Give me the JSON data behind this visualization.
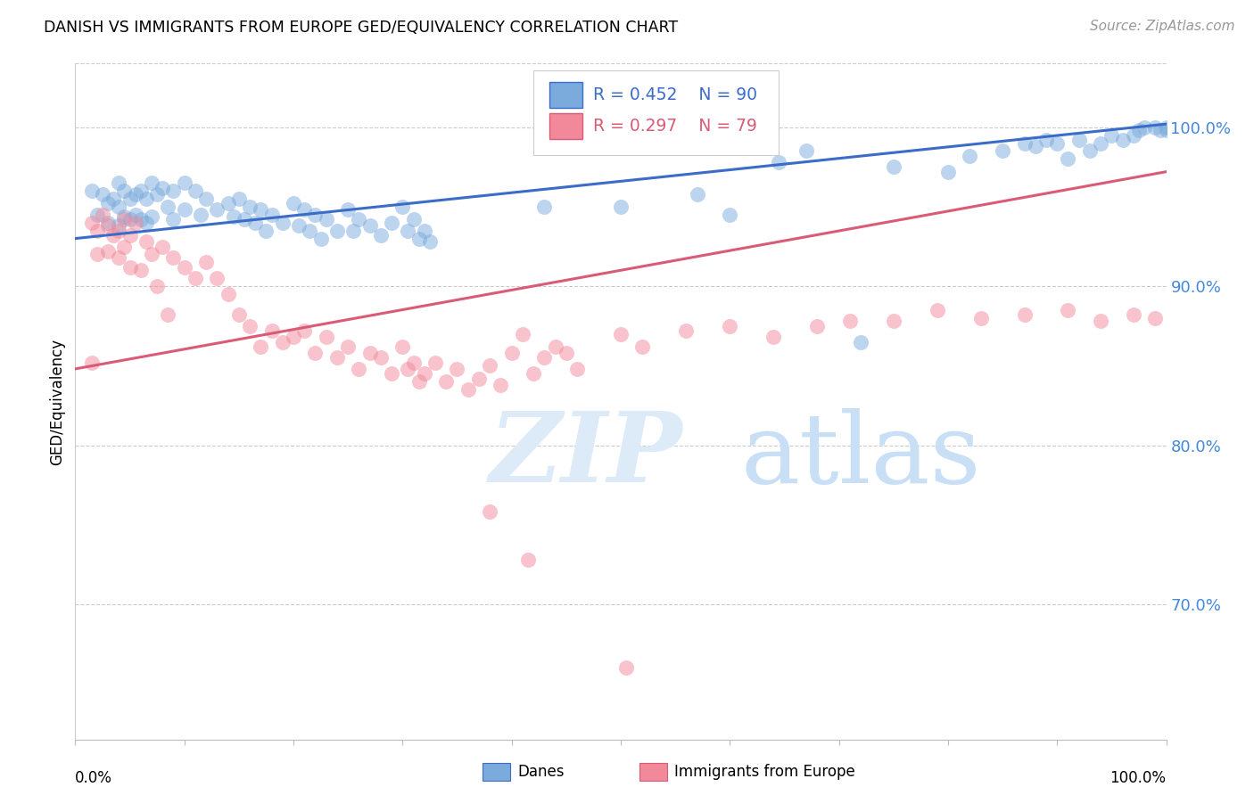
{
  "title": "DANISH VS IMMIGRANTS FROM EUROPE GED/EQUIVALENCY CORRELATION CHART",
  "source": "Source: ZipAtlas.com",
  "ylabel": "GED/Equivalency",
  "ytick_labels": [
    "100.0%",
    "90.0%",
    "80.0%",
    "70.0%"
  ],
  "ytick_positions": [
    1.0,
    0.9,
    0.8,
    0.7
  ],
  "xlim": [
    0.0,
    1.0
  ],
  "ylim": [
    0.615,
    1.04
  ],
  "legend_blue_r": "R = 0.452",
  "legend_blue_n": "N = 90",
  "legend_pink_r": "R = 0.297",
  "legend_pink_n": "N = 79",
  "blue_color": "#7AABDC",
  "pink_color": "#F2899A",
  "blue_line_color": "#3B6CC7",
  "pink_line_color": "#D95B75",
  "watermark_zip": "ZIP",
  "watermark_atlas": "atlas",
  "watermark_color": "#DDEAF8",
  "blue_trend_y_start": 0.93,
  "blue_trend_y_end": 1.002,
  "pink_trend_y_start": 0.848,
  "pink_trend_y_end": 0.972,
  "blue_scatter_x": [
    0.015,
    0.02,
    0.025,
    0.03,
    0.03,
    0.035,
    0.04,
    0.04,
    0.04,
    0.045,
    0.045,
    0.05,
    0.05,
    0.055,
    0.055,
    0.06,
    0.06,
    0.065,
    0.065,
    0.07,
    0.07,
    0.075,
    0.08,
    0.085,
    0.09,
    0.09,
    0.1,
    0.1,
    0.11,
    0.115,
    0.12,
    0.13,
    0.14,
    0.145,
    0.15,
    0.155,
    0.16,
    0.165,
    0.17,
    0.175,
    0.18,
    0.19,
    0.2,
    0.205,
    0.21,
    0.215,
    0.22,
    0.225,
    0.23,
    0.24,
    0.25,
    0.255,
    0.26,
    0.27,
    0.28,
    0.29,
    0.3,
    0.305,
    0.31,
    0.315,
    0.32,
    0.325,
    0.43,
    0.5,
    0.57,
    0.6,
    0.72,
    0.75,
    0.8,
    0.82,
    0.85,
    0.87,
    0.88,
    0.89,
    0.9,
    0.91,
    0.92,
    0.93,
    0.94,
    0.95,
    0.96,
    0.97,
    0.975,
    0.98,
    0.99,
    0.995,
    1.0,
    1.0,
    0.645,
    0.67
  ],
  "blue_scatter_y": [
    0.96,
    0.945,
    0.958,
    0.952,
    0.94,
    0.955,
    0.965,
    0.95,
    0.938,
    0.96,
    0.944,
    0.955,
    0.942,
    0.958,
    0.945,
    0.96,
    0.942,
    0.955,
    0.94,
    0.965,
    0.944,
    0.958,
    0.962,
    0.95,
    0.96,
    0.942,
    0.965,
    0.948,
    0.96,
    0.945,
    0.955,
    0.948,
    0.952,
    0.944,
    0.955,
    0.942,
    0.95,
    0.94,
    0.948,
    0.935,
    0.945,
    0.94,
    0.952,
    0.938,
    0.948,
    0.935,
    0.945,
    0.93,
    0.942,
    0.935,
    0.948,
    0.935,
    0.942,
    0.938,
    0.932,
    0.94,
    0.95,
    0.935,
    0.942,
    0.93,
    0.935,
    0.928,
    0.95,
    0.95,
    0.958,
    0.945,
    0.865,
    0.975,
    0.972,
    0.982,
    0.985,
    0.99,
    0.988,
    0.992,
    0.99,
    0.98,
    0.992,
    0.985,
    0.99,
    0.995,
    0.992,
    0.995,
    0.998,
    1.0,
    1.0,
    0.998,
    1.0,
    0.998,
    0.978,
    0.985
  ],
  "pink_scatter_x": [
    0.015,
    0.02,
    0.02,
    0.025,
    0.03,
    0.03,
    0.035,
    0.04,
    0.04,
    0.045,
    0.045,
    0.05,
    0.05,
    0.055,
    0.06,
    0.065,
    0.07,
    0.075,
    0.08,
    0.085,
    0.09,
    0.1,
    0.11,
    0.12,
    0.13,
    0.14,
    0.15,
    0.16,
    0.17,
    0.18,
    0.19,
    0.2,
    0.21,
    0.22,
    0.23,
    0.24,
    0.25,
    0.26,
    0.27,
    0.28,
    0.29,
    0.3,
    0.305,
    0.31,
    0.315,
    0.32,
    0.33,
    0.34,
    0.35,
    0.36,
    0.37,
    0.38,
    0.39,
    0.4,
    0.41,
    0.42,
    0.43,
    0.44,
    0.45,
    0.46,
    0.5,
    0.52,
    0.56,
    0.6,
    0.64,
    0.68,
    0.71,
    0.75,
    0.79,
    0.83,
    0.87,
    0.91,
    0.94,
    0.97,
    0.99,
    0.015,
    0.38,
    0.415,
    0.505
  ],
  "pink_scatter_y": [
    0.94,
    0.935,
    0.92,
    0.945,
    0.938,
    0.922,
    0.932,
    0.935,
    0.918,
    0.942,
    0.925,
    0.932,
    0.912,
    0.94,
    0.91,
    0.928,
    0.92,
    0.9,
    0.925,
    0.882,
    0.918,
    0.912,
    0.905,
    0.915,
    0.905,
    0.895,
    0.882,
    0.875,
    0.862,
    0.872,
    0.865,
    0.868,
    0.872,
    0.858,
    0.868,
    0.855,
    0.862,
    0.848,
    0.858,
    0.855,
    0.845,
    0.862,
    0.848,
    0.852,
    0.84,
    0.845,
    0.852,
    0.84,
    0.848,
    0.835,
    0.842,
    0.85,
    0.838,
    0.858,
    0.87,
    0.845,
    0.855,
    0.862,
    0.858,
    0.848,
    0.87,
    0.862,
    0.872,
    0.875,
    0.868,
    0.875,
    0.878,
    0.878,
    0.885,
    0.88,
    0.882,
    0.885,
    0.878,
    0.882,
    0.88,
    0.852,
    0.758,
    0.728,
    0.66
  ]
}
